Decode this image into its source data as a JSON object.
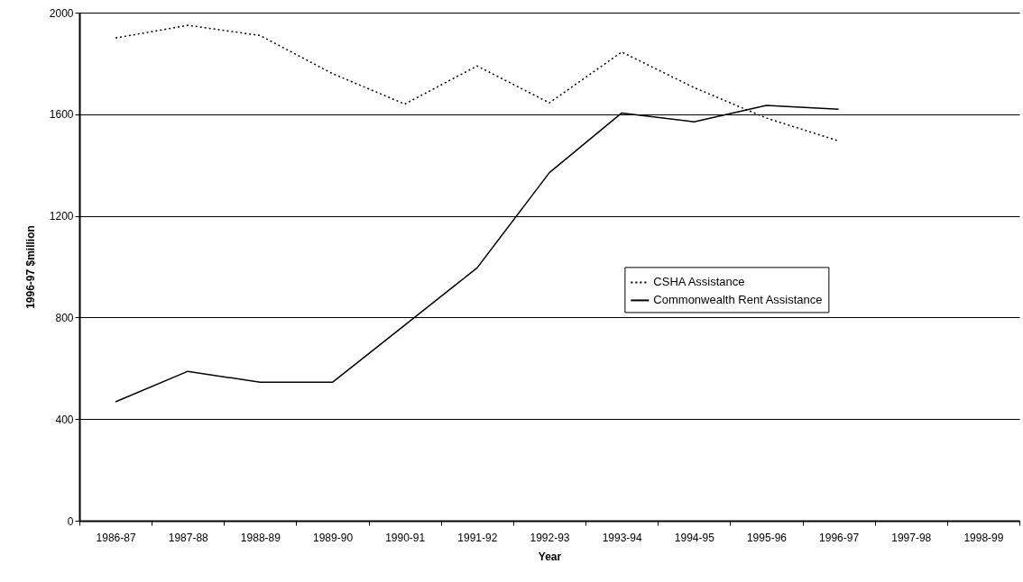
{
  "chart_data": {
    "type": "line",
    "xlabel": "Year",
    "ylabel": "1996-97 $million",
    "categories": [
      "1986-87",
      "1987-88",
      "1988-89",
      "1989-90",
      "1990-91",
      "1991-92",
      "1992-93",
      "1993-94",
      "1994-95",
      "1995-96",
      "1996-97",
      "1997-98",
      "1998-99"
    ],
    "series": [
      {
        "name": "CSHA Assistance",
        "color": "#000000",
        "line_style": "dotted",
        "values": [
          1900,
          1950,
          1910,
          1760,
          1640,
          1790,
          1645,
          1845,
          1705,
          1585,
          1495,
          null,
          null
        ]
      },
      {
        "name": "Commonwealth Rent Assistance",
        "color": "#000000",
        "line_style": "solid",
        "values": [
          468,
          588,
          545,
          545,
          770,
          995,
          1370,
          1605,
          1570,
          1635,
          1620,
          null,
          null
        ]
      }
    ],
    "ylim": [
      0,
      2000
    ],
    "yticks": [
      0,
      400,
      800,
      1200,
      1600,
      2000
    ],
    "grid": "y",
    "legend": "center right",
    "marker": "none"
  }
}
